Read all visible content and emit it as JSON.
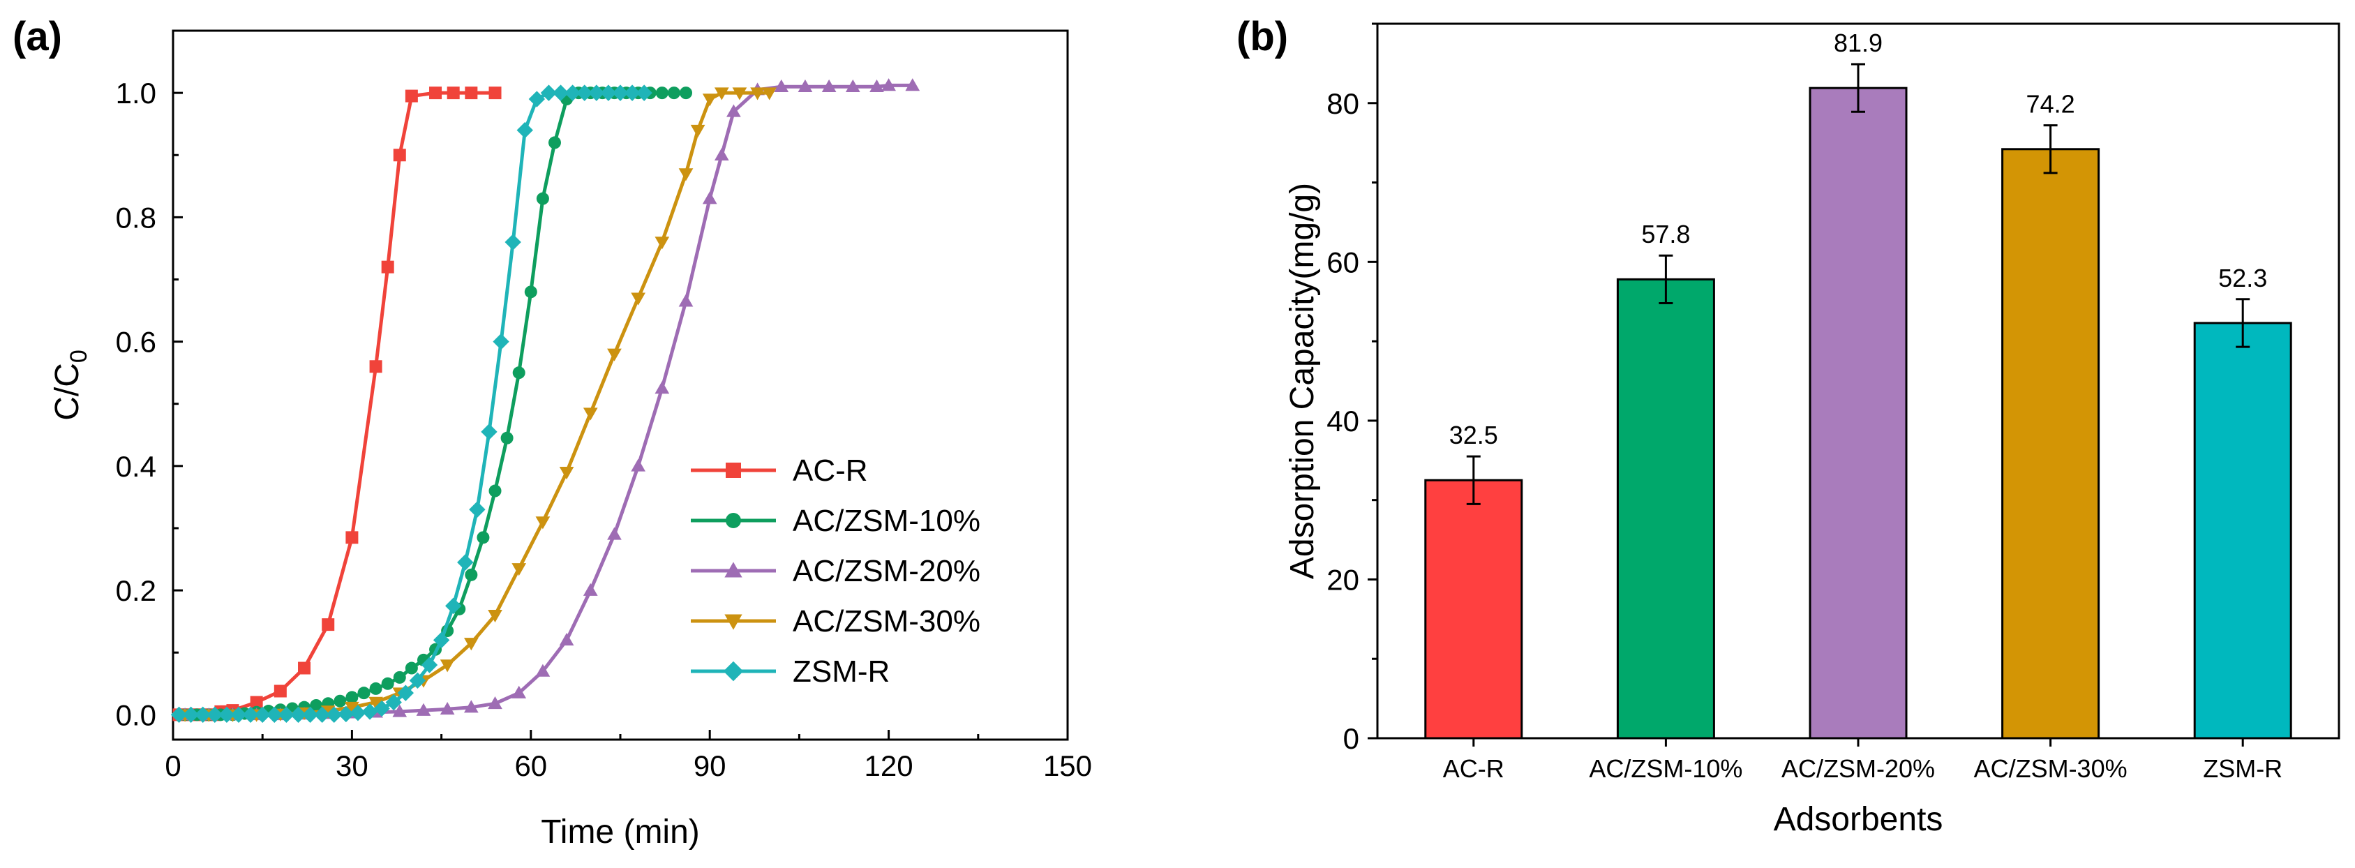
{
  "chart_data": [
    {
      "panel": "(a)",
      "type": "line",
      "xlabel": "Time (min)",
      "ylabel_main": "C/C",
      "ylabel_sub": "0",
      "xlim": [
        0,
        150
      ],
      "ylim": [
        -0.04,
        1.1
      ],
      "xticks": [
        0,
        30,
        60,
        90,
        120,
        150
      ],
      "yticks": [
        0.0,
        0.2,
        0.4,
        0.6,
        0.8,
        1.0
      ],
      "xtick_labels": [
        "0",
        "30",
        "60",
        "90",
        "120",
        "150"
      ],
      "ytick_labels": [
        "0.0",
        "0.2",
        "0.4",
        "0.6",
        "0.8",
        "1.0"
      ],
      "legend_position": "bottom-right",
      "series": [
        {
          "name": "AC-R",
          "color": "#F0433A",
          "marker": "square",
          "points": [
            [
              1,
              0
            ],
            [
              2,
              0
            ],
            [
              3,
              0
            ],
            [
              4,
              0
            ],
            [
              5,
              0
            ],
            [
              6,
              0
            ],
            [
              7,
              0
            ],
            [
              8,
              0.005
            ],
            [
              9,
              0.005
            ],
            [
              10,
              0.007
            ],
            [
              14,
              0.02
            ],
            [
              18,
              0.038
            ],
            [
              22,
              0.075
            ],
            [
              26,
              0.145
            ],
            [
              30,
              0.285
            ],
            [
              34,
              0.56
            ],
            [
              36,
              0.72
            ],
            [
              38,
              0.9
            ],
            [
              40,
              0.995
            ],
            [
              44,
              1.0
            ],
            [
              47,
              1.0
            ],
            [
              50,
              1.0
            ],
            [
              54,
              1.0
            ]
          ]
        },
        {
          "name": "AC/ZSM-10%",
          "color": "#0E9E5E",
          "marker": "circle",
          "points": [
            [
              2,
              0
            ],
            [
              4,
              0
            ],
            [
              6,
              0
            ],
            [
              8,
              0
            ],
            [
              10,
              0
            ],
            [
              12,
              0.002
            ],
            [
              14,
              0.004
            ],
            [
              16,
              0.006
            ],
            [
              18,
              0.008
            ],
            [
              20,
              0.01
            ],
            [
              22,
              0.012
            ],
            [
              24,
              0.015
            ],
            [
              26,
              0.018
            ],
            [
              28,
              0.022
            ],
            [
              30,
              0.028
            ],
            [
              32,
              0.035
            ],
            [
              34,
              0.042
            ],
            [
              36,
              0.05
            ],
            [
              38,
              0.06
            ],
            [
              40,
              0.075
            ],
            [
              42,
              0.088
            ],
            [
              44,
              0.105
            ],
            [
              46,
              0.135
            ],
            [
              48,
              0.17
            ],
            [
              50,
              0.225
            ],
            [
              52,
              0.285
            ],
            [
              54,
              0.36
            ],
            [
              56,
              0.445
            ],
            [
              58,
              0.55
            ],
            [
              60,
              0.68
            ],
            [
              62,
              0.83
            ],
            [
              64,
              0.92
            ],
            [
              66,
              0.99
            ],
            [
              68,
              1.0
            ],
            [
              70,
              1.0
            ],
            [
              72,
              1.0
            ],
            [
              74,
              1.0
            ],
            [
              76,
              1.0
            ],
            [
              78,
              1.0
            ],
            [
              80,
              1.0
            ],
            [
              82,
              1.0
            ],
            [
              84,
              1.0
            ],
            [
              86,
              1.0
            ]
          ]
        },
        {
          "name": "AC/ZSM-20%",
          "color": "#9E6CB4",
          "marker": "triangle-up",
          "points": [
            [
              2,
              0
            ],
            [
              6,
              0
            ],
            [
              10,
              0
            ],
            [
              14,
              0
            ],
            [
              18,
              0
            ],
            [
              22,
              0.001
            ],
            [
              26,
              0.002
            ],
            [
              30,
              0.003
            ],
            [
              34,
              0.004
            ],
            [
              38,
              0.005
            ],
            [
              42,
              0.007
            ],
            [
              46,
              0.009
            ],
            [
              50,
              0.012
            ],
            [
              54,
              0.018
            ],
            [
              58,
              0.035
            ],
            [
              62,
              0.07
            ],
            [
              66,
              0.12
            ],
            [
              70,
              0.2
            ],
            [
              74,
              0.29
            ],
            [
              78,
              0.4
            ],
            [
              82,
              0.525
            ],
            [
              86,
              0.665
            ],
            [
              90,
              0.83
            ],
            [
              92,
              0.9
            ],
            [
              94,
              0.97
            ],
            [
              98,
              1.005
            ],
            [
              102,
              1.01
            ],
            [
              106,
              1.01
            ],
            [
              110,
              1.01
            ],
            [
              114,
              1.01
            ],
            [
              118,
              1.01
            ],
            [
              120,
              1.012
            ],
            [
              124,
              1.012
            ]
          ]
        },
        {
          "name": "AC/ZSM-30%",
          "color": "#CC9210",
          "marker": "triangle-down",
          "points": [
            [
              2,
              0
            ],
            [
              6,
              0
            ],
            [
              10,
              0
            ],
            [
              14,
              0
            ],
            [
              18,
              0.001
            ],
            [
              22,
              0.003
            ],
            [
              26,
              0.006
            ],
            [
              30,
              0.012
            ],
            [
              34,
              0.02
            ],
            [
              38,
              0.035
            ],
            [
              42,
              0.055
            ],
            [
              46,
              0.08
            ],
            [
              50,
              0.115
            ],
            [
              54,
              0.16
            ],
            [
              58,
              0.235
            ],
            [
              62,
              0.31
            ],
            [
              66,
              0.39
            ],
            [
              70,
              0.485
            ],
            [
              74,
              0.58
            ],
            [
              78,
              0.67
            ],
            [
              82,
              0.76
            ],
            [
              86,
              0.87
            ],
            [
              88,
              0.94
            ],
            [
              90,
              0.99
            ],
            [
              92,
              1.0
            ],
            [
              95,
              1.0
            ],
            [
              98,
              1.0
            ],
            [
              100,
              1.0
            ]
          ]
        },
        {
          "name": "ZSM-R",
          "color": "#1FB4B8",
          "marker": "diamond",
          "points": [
            [
              1,
              0
            ],
            [
              3,
              0
            ],
            [
              5,
              0
            ],
            [
              7,
              0
            ],
            [
              9,
              0
            ],
            [
              11,
              0
            ],
            [
              13,
              0
            ],
            [
              15,
              0
            ],
            [
              17,
              0
            ],
            [
              19,
              0
            ],
            [
              21,
              0
            ],
            [
              23,
              0
            ],
            [
              25,
              0
            ],
            [
              27,
              0
            ],
            [
              29,
              0.001
            ],
            [
              31,
              0.003
            ],
            [
              33,
              0.005
            ],
            [
              35,
              0.01
            ],
            [
              37,
              0.02
            ],
            [
              39,
              0.035
            ],
            [
              41,
              0.055
            ],
            [
              43,
              0.08
            ],
            [
              45,
              0.12
            ],
            [
              47,
              0.175
            ],
            [
              49,
              0.245
            ],
            [
              51,
              0.33
            ],
            [
              53,
              0.455
            ],
            [
              55,
              0.6
            ],
            [
              57,
              0.76
            ],
            [
              59,
              0.94
            ],
            [
              61,
              0.99
            ],
            [
              63,
              1.0
            ],
            [
              65,
              1.0
            ],
            [
              67,
              1.0
            ],
            [
              69,
              1.0
            ],
            [
              71,
              1.0
            ],
            [
              73,
              1.0
            ],
            [
              75,
              1.0
            ],
            [
              77,
              1.0
            ],
            [
              79,
              1.0
            ]
          ]
        }
      ]
    },
    {
      "panel": "(b)",
      "type": "bar",
      "xlabel": "Adsorbents",
      "ylabel": "Adsorption Capacity(mg/g)",
      "ylim": [
        0,
        90
      ],
      "yticks": [
        0,
        20,
        40,
        60,
        80
      ],
      "ytick_labels": [
        "0",
        "20",
        "40",
        "60",
        "80"
      ],
      "categories": [
        "AC-R",
        "AC/ZSM-10%",
        "AC/ZSM-20%",
        "AC/ZSM-30%",
        "ZSM-R"
      ],
      "values": [
        32.5,
        57.8,
        81.9,
        74.2,
        52.3
      ],
      "value_labels": [
        "32.5",
        "57.8",
        "81.9",
        "74.2",
        "52.3"
      ],
      "errors": [
        3.0,
        3.0,
        3.0,
        3.0,
        3.0
      ],
      "colors": [
        "#FF4040",
        "#00A86B",
        "#A97CBC",
        "#D39505",
        "#00B8BE"
      ]
    }
  ]
}
